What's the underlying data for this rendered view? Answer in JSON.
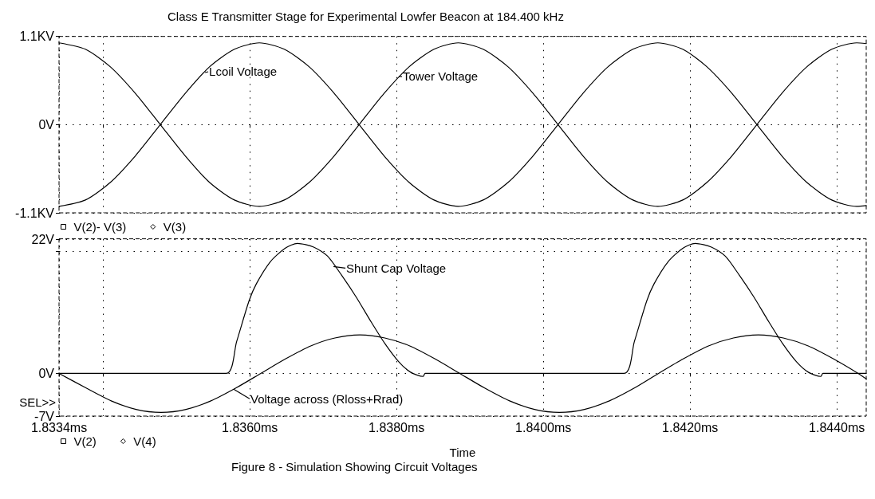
{
  "chart_data": [
    {
      "type": "line",
      "title": "Class E Transmitter Stage for Experimental Lowfer Beacon at 184.400 kHz",
      "x": [
        1.8334,
        1.83376,
        1.8341,
        1.83444,
        1.83478,
        1.83512,
        1.83545,
        1.83579,
        1.83613,
        1.83647,
        1.83681,
        1.83715,
        1.83749,
        1.83783,
        1.83817,
        1.83851,
        1.83884,
        1.83918,
        1.83952,
        1.83986,
        1.8402,
        1.84054,
        1.84088,
        1.84122,
        1.84156,
        1.8419,
        1.84223,
        1.84257,
        1.84291,
        1.84325,
        1.84359,
        1.84393,
        1.84427,
        1.8444
      ],
      "series": [
        {
          "name": "V(2)- V(3)",
          "color": "#000000",
          "values": [
            -1.02,
            -0.94,
            -0.72,
            -0.39,
            0,
            0.39,
            0.72,
            0.94,
            1.02,
            0.94,
            0.72,
            0.39,
            0,
            -0.39,
            -0.72,
            -0.94,
            -1.02,
            -0.94,
            -0.72,
            -0.39,
            0,
            0.39,
            0.72,
            0.94,
            1.02,
            0.94,
            0.72,
            0.39,
            0,
            -0.39,
            -0.72,
            -0.94,
            -1.02,
            -1.01
          ]
        },
        {
          "name": "V(3)",
          "color": "#000000",
          "values": [
            1.02,
            0.94,
            0.72,
            0.39,
            0,
            -0.39,
            -0.72,
            -0.94,
            -1.02,
            -0.94,
            -0.72,
            -0.39,
            0,
            0.39,
            0.72,
            0.94,
            1.02,
            0.94,
            0.72,
            0.39,
            0,
            -0.39,
            -0.72,
            -0.94,
            -1.02,
            -0.94,
            -0.72,
            -0.39,
            0,
            0.39,
            0.72,
            0.94,
            1.02,
            1.01
          ]
        }
      ],
      "xlim": [
        1.8334,
        1.8444
      ],
      "xticks": [
        1.8334,
        1.834,
        1.836,
        1.838,
        1.84,
        1.842,
        1.844
      ],
      "ylim": [
        -1.1,
        1.1
      ],
      "yticks": [
        {
          "value": -1.1,
          "label": "-1.1KV"
        },
        {
          "value": 0,
          "label": "0V"
        },
        {
          "value": 1.1,
          "label": "1.1KV"
        }
      ],
      "grid": true,
      "legend": "bottom left",
      "tick_labels": "y",
      "annotations": [
        {
          "text": "Lcoil Voltage",
          "x": 1.83539,
          "y": 0.65
        },
        {
          "text": "Tower Voltage",
          "x": 1.83803,
          "y": 0.6
        }
      ]
    },
    {
      "type": "line",
      "xlabel": "Time",
      "series": [
        {
          "name": "V(2)",
          "color": "#000000",
          "x": [
            1.8334,
            1.83568,
            1.83582,
            1.83599,
            1.83609,
            1.83628,
            1.83648,
            1.83665,
            1.83687,
            1.83706,
            1.83725,
            1.83745,
            1.83764,
            1.83784,
            1.83803,
            1.83819,
            1.83836,
            1.83839,
            1.8411,
            1.84124,
            1.84141,
            1.84151,
            1.8417,
            1.8419,
            1.84207,
            1.84229,
            1.84248,
            1.84267,
            1.84287,
            1.84306,
            1.84326,
            1.84345,
            1.84361,
            1.84378,
            1.84381,
            1.8444
          ],
          "values": [
            0,
            0,
            5.2,
            11.9,
            14.7,
            18.3,
            20.5,
            21.3,
            20.7,
            19.2,
            16.1,
            12.5,
            8.7,
            4.9,
            1.9,
            0.2,
            -0.5,
            0,
            0,
            5.2,
            11.9,
            14.7,
            18.3,
            20.5,
            21.3,
            20.7,
            19.2,
            16.1,
            12.5,
            8.7,
            4.9,
            1.9,
            0.2,
            -0.5,
            0,
            0
          ]
        },
        {
          "name": "V(4)",
          "color": "#000000",
          "x": [
            1.8334,
            1.83377,
            1.83411,
            1.83445,
            1.83479,
            1.83513,
            1.83547,
            1.83581,
            1.83615,
            1.83649,
            1.83683,
            1.83716,
            1.8375,
            1.83784,
            1.83818,
            1.83852,
            1.83886,
            1.8392,
            1.83954,
            1.83988,
            1.84022,
            1.84056,
            1.8409,
            1.84124,
            1.84157,
            1.84191,
            1.84225,
            1.84259,
            1.84293,
            1.84327,
            1.84361,
            1.84395,
            1.84429,
            1.8444
          ],
          "values": [
            0,
            -2.4,
            -4.5,
            -5.9,
            -6.4,
            -5.9,
            -4.5,
            -2.4,
            0,
            2.4,
            4.5,
            5.8,
            6.3,
            5.8,
            4.5,
            2.4,
            0,
            -2.4,
            -4.5,
            -5.9,
            -6.4,
            -5.9,
            -4.5,
            -2.4,
            0,
            2.4,
            4.5,
            5.8,
            6.3,
            5.8,
            4.5,
            2.4,
            0,
            -0.9
          ]
        }
      ],
      "xlim": [
        1.8334,
        1.8444
      ],
      "xticks": [
        {
          "value": 1.8334,
          "label": "1.8334ms"
        },
        {
          "value": 1.834,
          "label": null
        },
        {
          "value": 1.836,
          "label": "1.8360ms"
        },
        {
          "value": 1.838,
          "label": "1.8380ms"
        },
        {
          "value": 1.84,
          "label": "1.8400ms"
        },
        {
          "value": 1.842,
          "label": "1.8420ms"
        },
        {
          "value": 1.844,
          "label": "1.8440ms"
        }
      ],
      "ylim": [
        -7,
        22
      ],
      "yticks": [
        {
          "value": -7,
          "label": "-7V"
        },
        {
          "value": 0,
          "label": "0V"
        },
        {
          "value": 20,
          "label": null
        },
        {
          "value": 22,
          "label": "22V"
        }
      ],
      "grid": true,
      "legend": "bottom left",
      "annotations": [
        {
          "text": "Shunt Cap Voltage",
          "x": 1.83714,
          "y": 17.5
        },
        {
          "text": "Voltage across (Rloss+Rrad)",
          "x": 1.83578,
          "y": -2.6
        },
        "SEL>>",
        "Figure 8 - Simulation Showing Circuit Voltages"
      ]
    }
  ]
}
